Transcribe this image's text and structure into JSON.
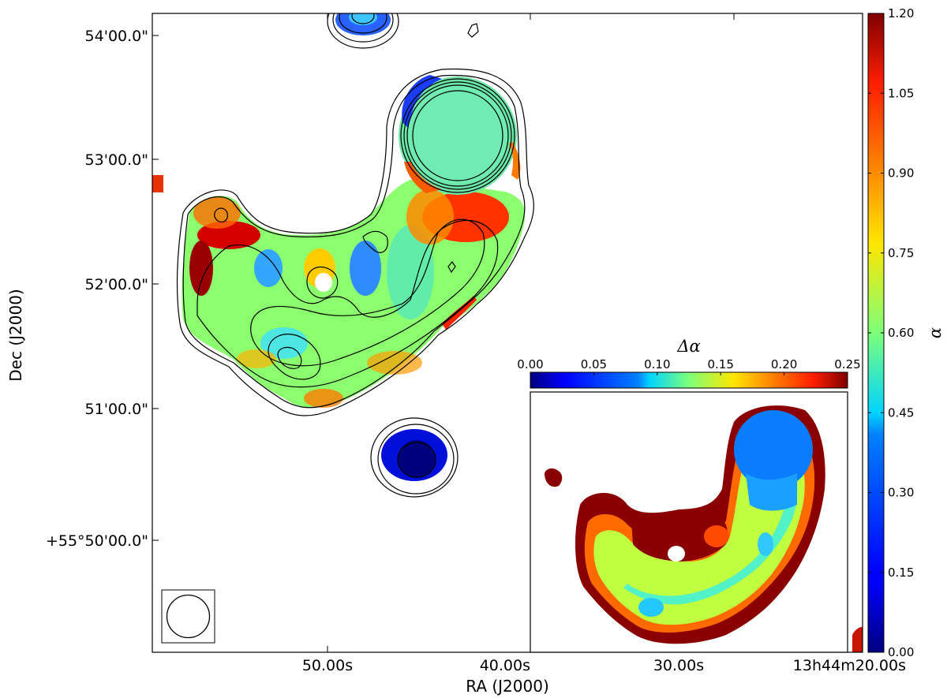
{
  "chart_data": [
    {
      "type": "heatmap",
      "title": "",
      "xlabel": "RA (J2000)",
      "ylabel": "Dec (J2000)",
      "x_tick_labels": [
        "50.00s",
        "40.00s",
        "30.00s",
        "13h44m20.00s"
      ],
      "y_tick_labels": [
        "54'00.0\"",
        "53'00.0\"",
        "52'00.0\"",
        "51'00.0\"",
        "+55°50'00.0\""
      ],
      "colorbar": {
        "label": "α",
        "colormap": "jet",
        "range": [
          0.0,
          1.2
        ],
        "ticks": [
          "0.00",
          "0.15",
          "0.30",
          "0.45",
          "0.60",
          "0.75",
          "0.90",
          "1.05",
          "1.20"
        ]
      },
      "contours": "black flux contours",
      "beam": "circular beam, lower-left"
    },
    {
      "type": "heatmap",
      "title": "",
      "inset": true,
      "colorbar": {
        "label": "Δα",
        "colormap": "jet",
        "range": [
          0.0,
          0.25
        ],
        "ticks": [
          "0.00",
          "0.05",
          "0.10",
          "0.15",
          "0.20",
          "0.25"
        ]
      }
    }
  ]
}
